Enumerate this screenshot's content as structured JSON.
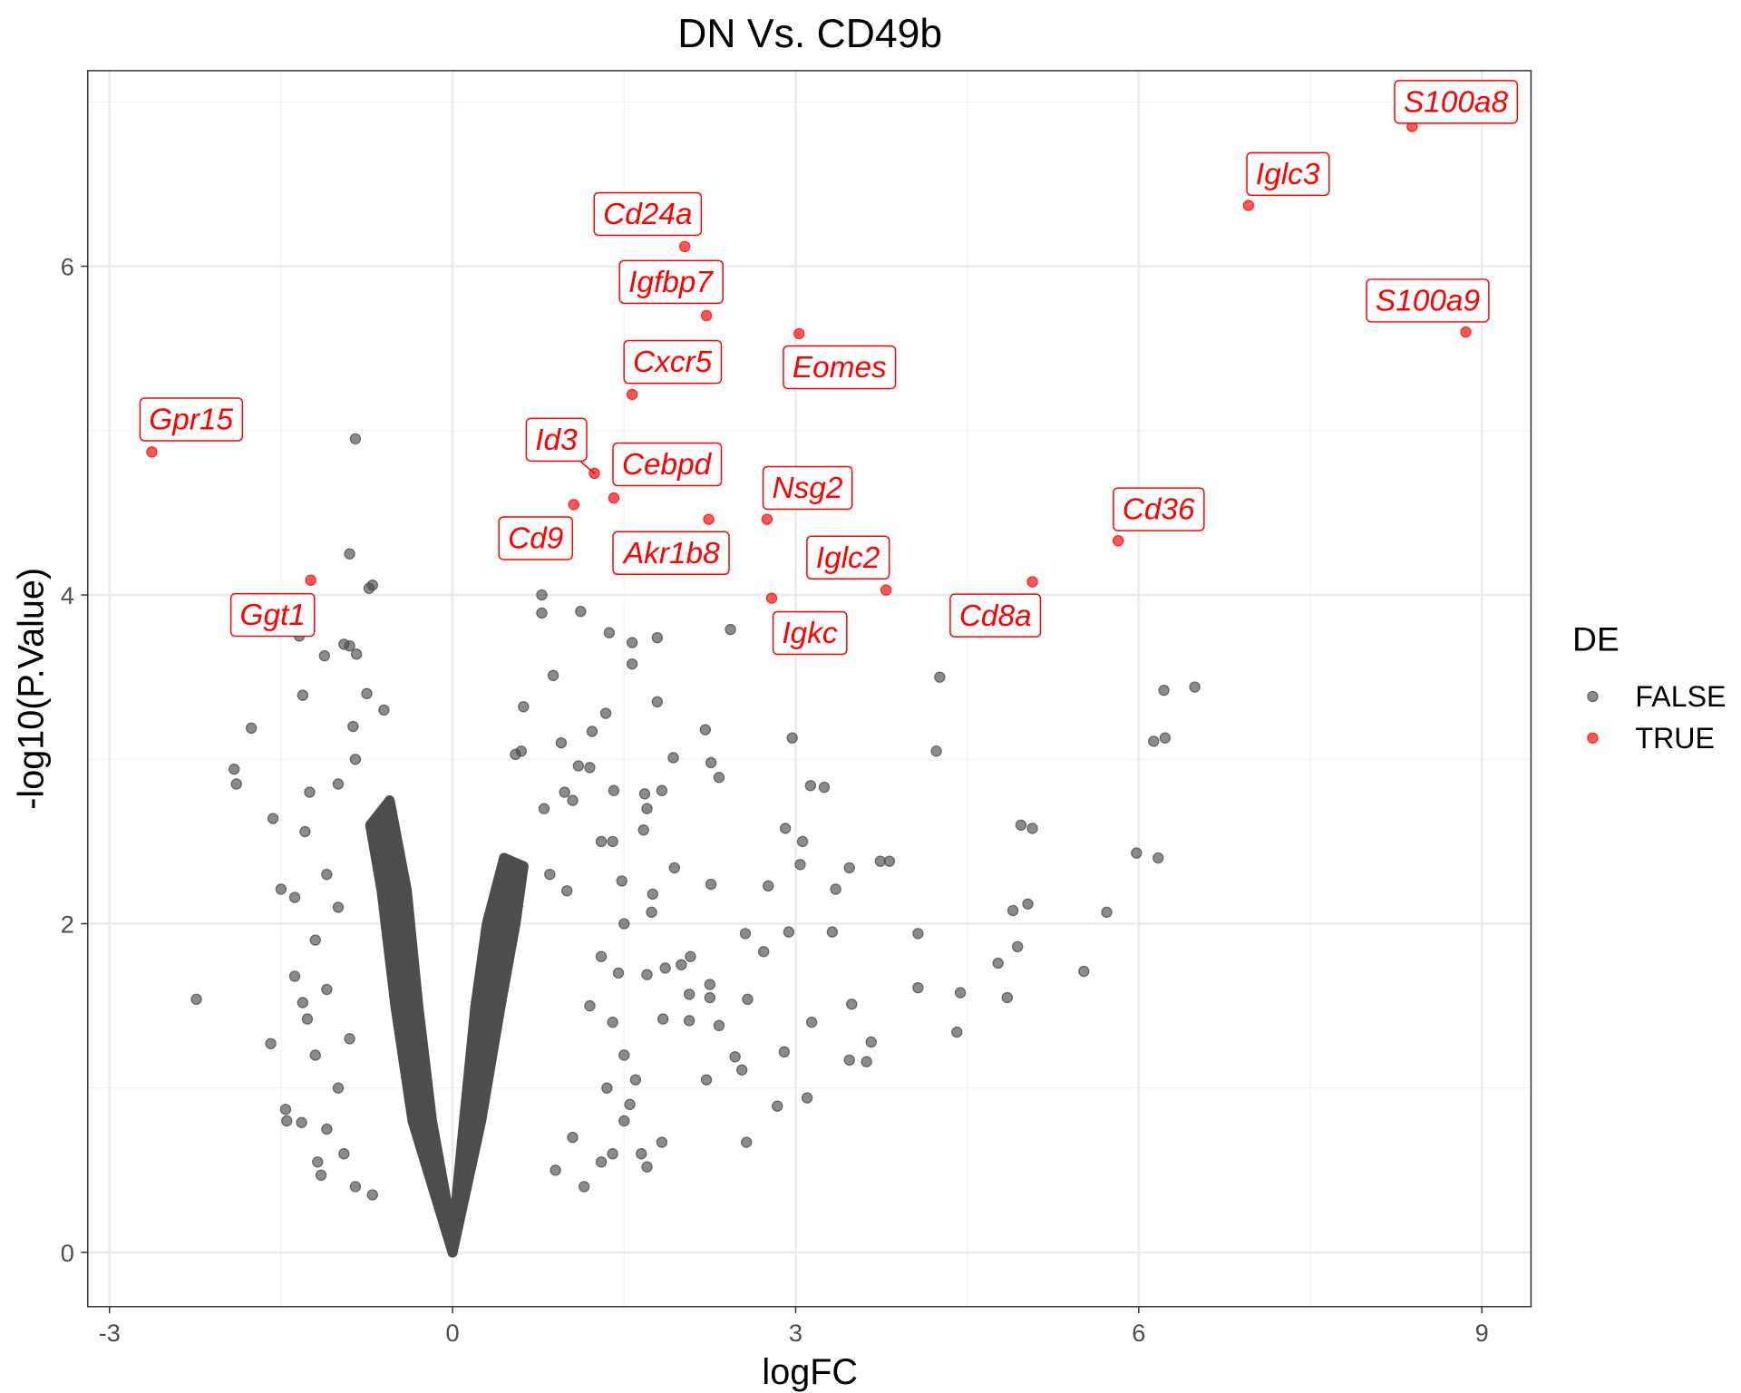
{
  "chart_data": {
    "type": "scatter",
    "title": "DN Vs. CD49b",
    "xlabel": "logFC",
    "ylabel": "-log10(P.Value)",
    "xlim": [
      -3.19,
      9.43
    ],
    "ylim": [
      -0.33,
      7.19
    ],
    "xticks": [
      -3,
      0,
      3,
      6,
      9
    ],
    "yticks": [
      0,
      2,
      4,
      6
    ],
    "xtick_labels": [
      "-3",
      "0",
      "3",
      "6",
      "9"
    ],
    "ytick_labels": [
      "0",
      "2",
      "4",
      "6"
    ],
    "grid": true,
    "legend": {
      "title": "DE",
      "position": "right",
      "entries": [
        {
          "label": "FALSE",
          "color": "#4d4d4d"
        },
        {
          "label": "TRUE",
          "color": "#ff0000"
        }
      ]
    },
    "colors": {
      "FALSE": "#4d4d4d",
      "TRUE": "#ff0000",
      "label": "#ff0000"
    },
    "series": [
      {
        "name": "TRUE",
        "points": [
          {
            "gene": "S100a8",
            "x": 8.39,
            "y": 6.85
          },
          {
            "gene": "Iglc3",
            "x": 6.96,
            "y": 6.37
          },
          {
            "gene": "S100a9",
            "x": 8.86,
            "y": 5.6
          },
          {
            "gene": "Cd24a",
            "x": 2.03,
            "y": 6.12
          },
          {
            "gene": "Igfbp7",
            "x": 2.22,
            "y": 5.7
          },
          {
            "gene": "Eomes",
            "x": 3.03,
            "y": 5.59
          },
          {
            "gene": "Cxcr5",
            "x": 1.57,
            "y": 5.22
          },
          {
            "gene": "Gpr15",
            "x": -2.63,
            "y": 4.87
          },
          {
            "gene": "Id3",
            "x": 1.24,
            "y": 4.74
          },
          {
            "gene": "Cebpd",
            "x": 1.41,
            "y": 4.59
          },
          {
            "gene": "Cd9",
            "x": 1.06,
            "y": 4.55
          },
          {
            "gene": "Akr1b8",
            "x": 2.24,
            "y": 4.46
          },
          {
            "gene": "Nsg2",
            "x": 2.75,
            "y": 4.46
          },
          {
            "gene": "Cd36",
            "x": 5.82,
            "y": 4.33
          },
          {
            "gene": "Iglc2",
            "x": 3.79,
            "y": 4.03
          },
          {
            "gene": "Cd8a",
            "x": 5.07,
            "y": 4.08
          },
          {
            "gene": "Igkc",
            "x": 2.79,
            "y": 3.98
          },
          {
            "gene": "Ggt1",
            "x": -1.24,
            "y": 4.09
          }
        ]
      },
      {
        "name": "FALSE",
        "points": [
          [
            -0.85,
            4.95
          ],
          [
            -0.9,
            4.25
          ],
          [
            -0.7,
            4.06
          ],
          [
            -0.73,
            4.04
          ],
          [
            0.78,
            4.0
          ],
          [
            0.78,
            3.89
          ],
          [
            1.12,
            3.9
          ],
          [
            1.37,
            3.77
          ],
          [
            1.79,
            3.74
          ],
          [
            1.57,
            3.71
          ],
          [
            2.43,
            3.79
          ],
          [
            1.57,
            3.58
          ],
          [
            0.88,
            3.51
          ],
          [
            4.26,
            3.5
          ],
          [
            6.22,
            3.42
          ],
          [
            6.49,
            3.44
          ],
          [
            1.79,
            3.35
          ],
          [
            0.62,
            3.32
          ],
          [
            1.34,
            3.28
          ],
          [
            1.22,
            3.17
          ],
          [
            2.21,
            3.18
          ],
          [
            2.97,
            3.13
          ],
          [
            6.13,
            3.11
          ],
          [
            6.23,
            3.13
          ],
          [
            4.23,
            3.05
          ],
          [
            1.93,
            3.01
          ],
          [
            2.26,
            2.98
          ],
          [
            2.33,
            2.89
          ],
          [
            3.13,
            2.84
          ],
          [
            3.25,
            2.83
          ],
          [
            1.41,
            2.81
          ],
          [
            1.68,
            2.79
          ],
          [
            1.83,
            2.81
          ],
          [
            1.7,
            2.7
          ],
          [
            1.67,
            2.57
          ],
          [
            2.91,
            2.58
          ],
          [
            4.97,
            2.6
          ],
          [
            5.07,
            2.58
          ],
          [
            3.06,
            2.5
          ],
          [
            3.04,
            2.36
          ],
          [
            3.47,
            2.34
          ],
          [
            3.74,
            2.38
          ],
          [
            3.82,
            2.38
          ],
          [
            5.98,
            2.43
          ],
          [
            6.17,
            2.4
          ],
          [
            1.94,
            2.34
          ],
          [
            2.26,
            2.24
          ],
          [
            1.48,
            2.26
          ],
          [
            2.76,
            2.23
          ],
          [
            3.35,
            2.21
          ],
          [
            5.03,
            2.12
          ],
          [
            4.9,
            2.08
          ],
          [
            5.72,
            2.07
          ],
          [
            1.75,
            2.18
          ],
          [
            1.74,
            2.07
          ],
          [
            2.56,
            1.94
          ],
          [
            2.94,
            1.95
          ],
          [
            3.32,
            1.95
          ],
          [
            4.07,
            1.94
          ],
          [
            2.72,
            1.83
          ],
          [
            4.94,
            1.86
          ],
          [
            4.77,
            1.76
          ],
          [
            5.52,
            1.71
          ],
          [
            2.08,
            1.8
          ],
          [
            2.0,
            1.75
          ],
          [
            1.86,
            1.73
          ],
          [
            1.7,
            1.69
          ],
          [
            2.25,
            1.63
          ],
          [
            2.07,
            1.57
          ],
          [
            4.07,
            1.61
          ],
          [
            4.44,
            1.58
          ],
          [
            4.85,
            1.55
          ],
          [
            2.58,
            1.54
          ],
          [
            2.25,
            1.55
          ],
          [
            3.49,
            1.51
          ],
          [
            1.84,
            1.42
          ],
          [
            2.07,
            1.41
          ],
          [
            2.33,
            1.38
          ],
          [
            3.14,
            1.4
          ],
          [
            4.41,
            1.34
          ],
          [
            2.9,
            1.22
          ],
          [
            3.66,
            1.28
          ],
          [
            2.47,
            1.19
          ],
          [
            2.53,
            1.11
          ],
          [
            3.47,
            1.17
          ],
          [
            3.62,
            1.16
          ],
          [
            2.22,
            1.05
          ],
          [
            3.1,
            0.94
          ],
          [
            2.84,
            0.89
          ],
          [
            2.57,
            0.67
          ],
          [
            1.83,
            0.67
          ],
          [
            0.55,
            3.03
          ],
          [
            0.6,
            3.05
          ],
          [
            0.95,
            3.1
          ],
          [
            0.98,
            2.8
          ],
          [
            1.1,
            2.96
          ],
          [
            1.2,
            2.95
          ],
          [
            0.8,
            2.7
          ],
          [
            1.05,
            2.75
          ],
          [
            1.3,
            2.5
          ],
          [
            1.4,
            2.5
          ],
          [
            1.5,
            2.0
          ],
          [
            1.3,
            1.8
          ],
          [
            1.45,
            1.7
          ],
          [
            1.2,
            1.5
          ],
          [
            1.4,
            1.4
          ],
          [
            1.5,
            1.2
          ],
          [
            1.35,
            1.0
          ],
          [
            1.5,
            0.8
          ],
          [
            1.4,
            0.6
          ],
          [
            1.3,
            0.55
          ],
          [
            0.9,
            0.5
          ],
          [
            1.05,
            0.7
          ],
          [
            1.15,
            0.4
          ],
          [
            1.6,
            1.05
          ],
          [
            1.65,
            0.6
          ],
          [
            1.7,
            0.52
          ],
          [
            1.55,
            0.9
          ],
          [
            0.85,
            2.3
          ],
          [
            1.0,
            2.2
          ],
          [
            -2.24,
            1.54
          ],
          [
            -1.91,
            2.94
          ],
          [
            -1.89,
            2.85
          ],
          [
            -1.76,
            3.19
          ],
          [
            -1.57,
            2.64
          ],
          [
            -1.59,
            1.27
          ],
          [
            -1.5,
            2.21
          ],
          [
            -1.46,
            0.87
          ],
          [
            -1.45,
            0.8
          ],
          [
            -1.38,
            2.16
          ],
          [
            -1.38,
            1.68
          ],
          [
            -1.31,
            3.39
          ],
          [
            -1.29,
            2.56
          ],
          [
            -1.25,
            2.8
          ],
          [
            -1.27,
            1.42
          ],
          [
            -1.31,
            1.52
          ],
          [
            -1.32,
            0.79
          ],
          [
            -1.18,
            0.55
          ],
          [
            -1.15,
            0.47
          ],
          [
            -1.12,
            3.63
          ],
          [
            -1.34,
            3.75
          ],
          [
            -0.95,
            3.7
          ],
          [
            -0.9,
            3.69
          ],
          [
            -0.84,
            3.64
          ],
          [
            -0.87,
            3.2
          ],
          [
            -0.75,
            3.4
          ],
          [
            -0.6,
            3.3
          ],
          [
            -0.85,
            3.0
          ],
          [
            -1.0,
            2.85
          ],
          [
            -1.1,
            2.3
          ],
          [
            -1.0,
            2.1
          ],
          [
            -1.2,
            1.9
          ],
          [
            -1.1,
            1.6
          ],
          [
            -1.2,
            1.2
          ],
          [
            -1.0,
            1.0
          ],
          [
            -1.1,
            0.75
          ],
          [
            -0.95,
            0.6
          ],
          [
            -0.85,
            0.4
          ],
          [
            -0.7,
            0.35
          ],
          [
            -0.9,
            1.3
          ]
        ]
      }
    ],
    "dense_region_outline": [
      [
        [
          0,
          0
        ],
        [
          -0.35,
          0.8
        ],
        [
          -0.5,
          1.5
        ],
        [
          -0.62,
          2.2
        ],
        [
          -0.72,
          2.6
        ],
        [
          -0.55,
          2.75
        ],
        [
          -0.4,
          2.2
        ],
        [
          -0.3,
          1.5
        ],
        [
          -0.18,
          0.8
        ],
        [
          -0.05,
          0.3
        ]
      ],
      [
        [
          0,
          0
        ],
        [
          0.25,
          0.8
        ],
        [
          0.42,
          1.5
        ],
        [
          0.55,
          2.0
        ],
        [
          0.62,
          2.35
        ],
        [
          0.45,
          2.4
        ],
        [
          0.3,
          2.0
        ],
        [
          0.2,
          1.5
        ],
        [
          0.1,
          0.8
        ],
        [
          0.03,
          0.3
        ]
      ]
    ]
  }
}
